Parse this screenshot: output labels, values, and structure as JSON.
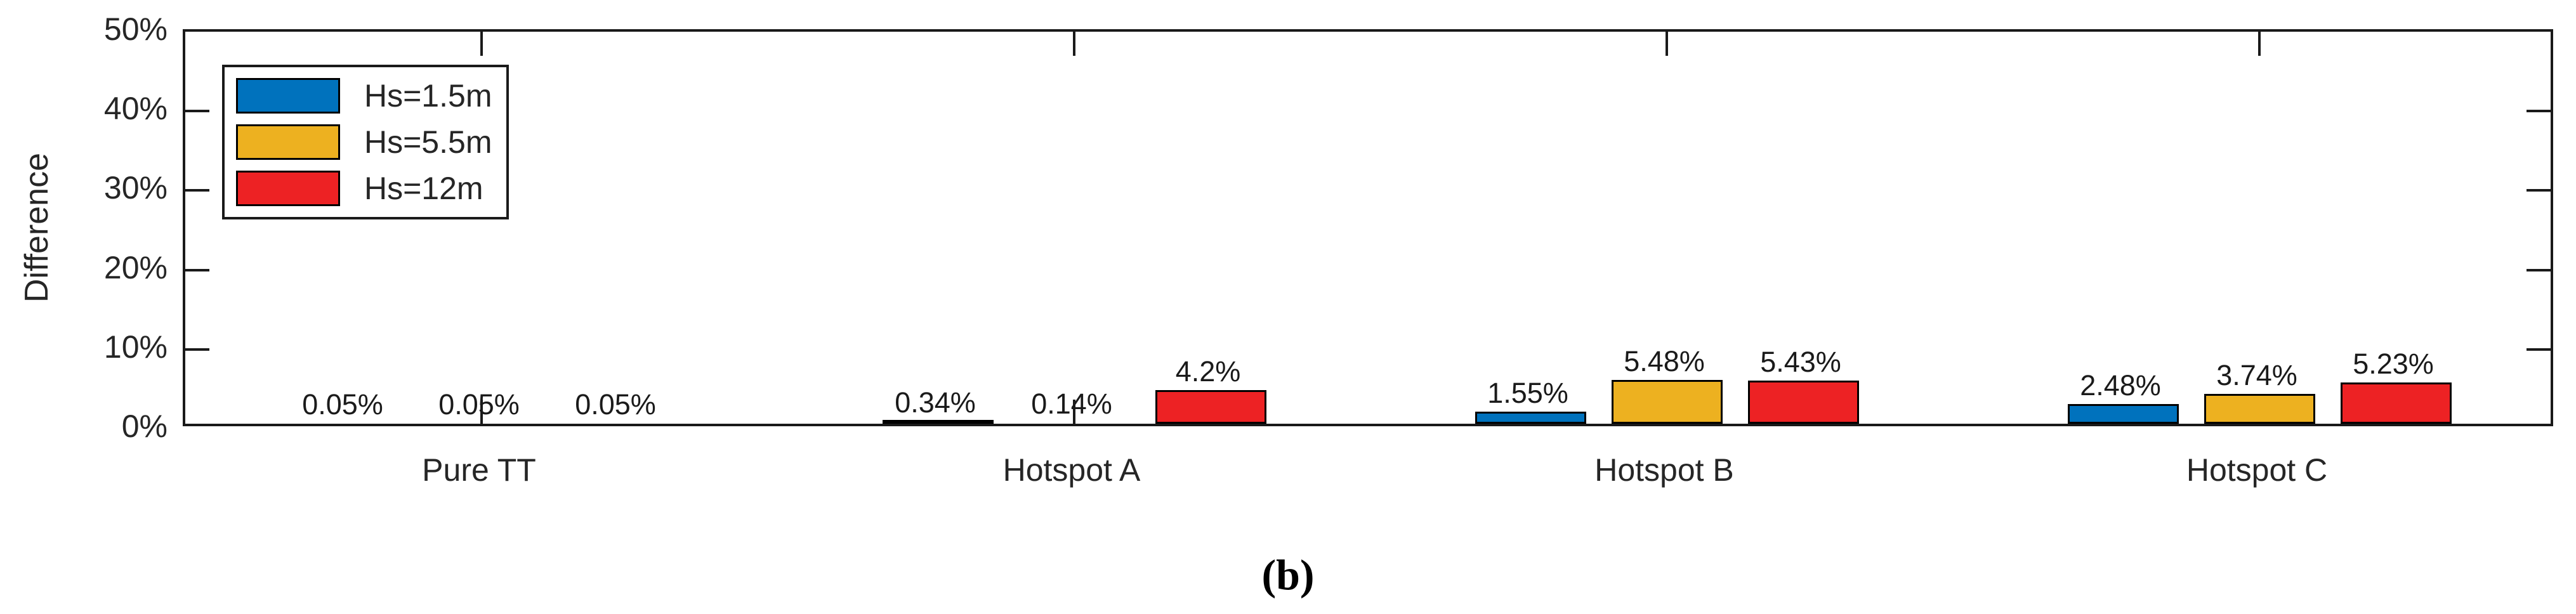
{
  "figure": {
    "caption": "(b)"
  },
  "chart_data": {
    "type": "bar",
    "title": "",
    "xlabel": "",
    "ylabel": "Difference",
    "ylim": [
      0,
      50
    ],
    "ytick_values": [
      0,
      10,
      20,
      30,
      40,
      50
    ],
    "ytick_labels": [
      "0%",
      "10%",
      "20%",
      "30%",
      "40%",
      "50%"
    ],
    "grid": "off",
    "legend_position": "top-left-inside",
    "categories": [
      "Pure TT",
      "Hotspot A",
      "Hotspot B",
      "Hotspot C"
    ],
    "series": [
      {
        "name": "Hs=1.5m",
        "color": "#0072BD",
        "values": [
          0.05,
          0.34,
          1.55,
          2.48
        ],
        "value_labels": [
          "0.05%",
          "0.34%",
          "1.55%",
          "2.48%"
        ]
      },
      {
        "name": "Hs=5.5m",
        "color": "#EDB120",
        "values": [
          0.05,
          0.14,
          5.48,
          3.74
        ],
        "value_labels": [
          "0.05%",
          "0.14%",
          "5.48%",
          "3.74%"
        ]
      },
      {
        "name": "Hs=12m",
        "color": "#ED2224",
        "values": [
          0.05,
          4.2,
          5.43,
          5.23
        ],
        "value_labels": [
          "0.05%",
          "4.2%",
          "5.43%",
          "5.23%"
        ]
      }
    ],
    "axis_color": "#1a1a1a",
    "text_color": "#262626"
  }
}
